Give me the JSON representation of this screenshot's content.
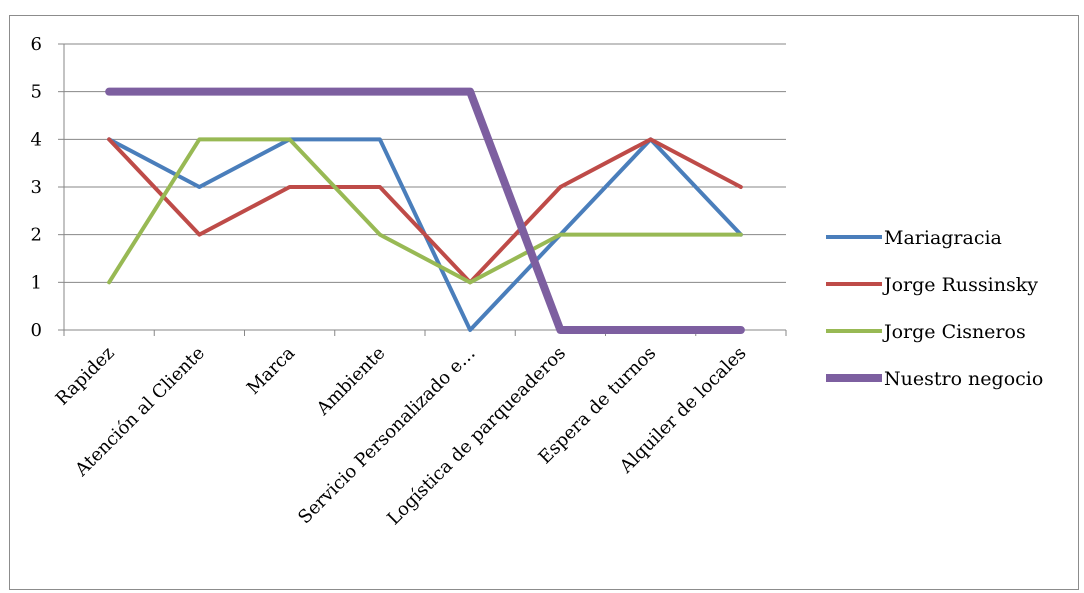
{
  "chart_data": {
    "type": "line",
    "categories": [
      "Rapidez",
      "Atención al Cliente",
      "Marca",
      "Ambiente",
      "Servicio Personalizado e…",
      "Logística de parqueaderos",
      "Espera de turnos",
      "Alquiler de locales"
    ],
    "series": [
      {
        "name": "Mariagracia",
        "values": [
          4,
          3,
          4,
          4,
          0,
          2,
          4,
          2
        ],
        "color": "#4a7ebb"
      },
      {
        "name": "Jorge Russinsky",
        "values": [
          4,
          2,
          3,
          3,
          1,
          3,
          4,
          3
        ],
        "color": "#be4b48"
      },
      {
        "name": "Jorge Cisneros",
        "values": [
          1,
          4,
          4,
          2,
          1,
          2,
          2,
          2
        ],
        "color": "#98b954"
      },
      {
        "name": "Nuestro negocio",
        "values": [
          5,
          5,
          5,
          5,
          5,
          0,
          0,
          0
        ],
        "color": "#7d5fa0"
      }
    ],
    "ylim": [
      0,
      6
    ],
    "yticks": [
      "0",
      "1",
      "2",
      "3",
      "4",
      "5",
      "6"
    ],
    "grid": true,
    "legend": "right",
    "title": "",
    "xlabel": "",
    "ylabel": ""
  }
}
